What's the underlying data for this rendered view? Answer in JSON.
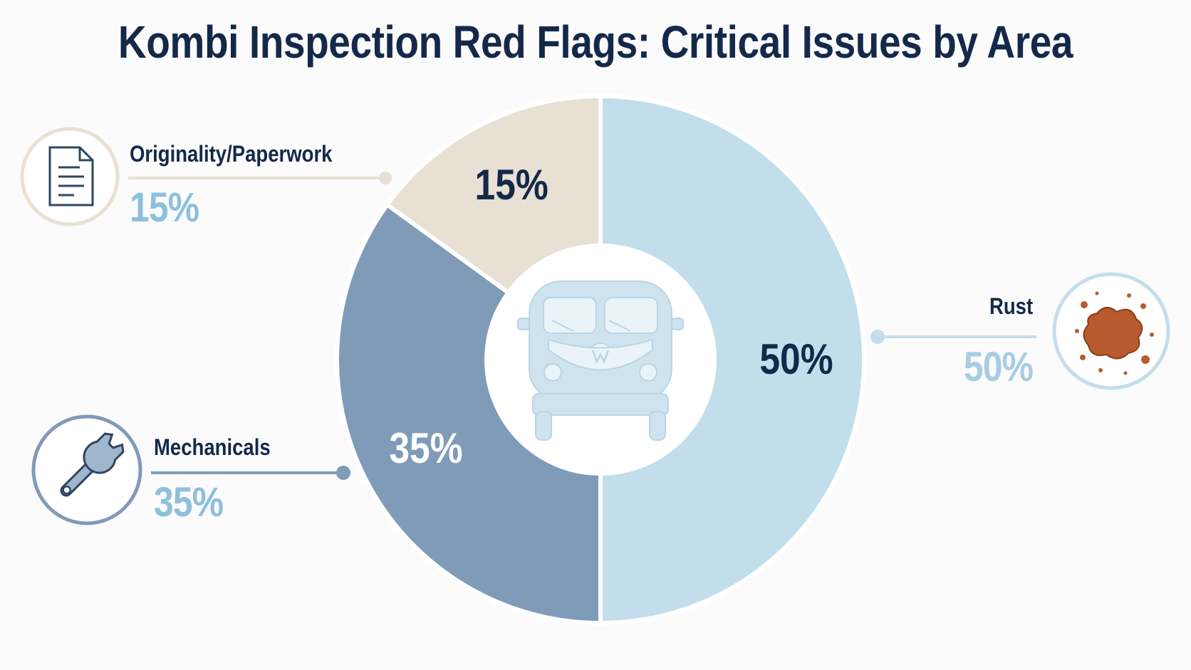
{
  "chart_data": {
    "type": "pie",
    "title": "Kombi Inspection Red Flags: Critical Issues by Area",
    "categories": [
      "Rust",
      "Mechanicals",
      "Originality/Paperwork"
    ],
    "values": [
      50,
      35,
      15
    ],
    "slice_labels": [
      "50%",
      "35%",
      "15%"
    ],
    "donut": true,
    "start_angle": "12 o'clock",
    "direction": "clockwise",
    "legend_placement": "callouts"
  },
  "callouts": [
    {
      "name": "Originality/Paperwork",
      "value": "15%",
      "icon": "document-icon"
    },
    {
      "name": "Mechanicals",
      "value": "35%",
      "icon": "wrench-icon"
    },
    {
      "name": "Rust",
      "value": "50%",
      "icon": "rust-stain-icon"
    }
  ],
  "center_icon": "vw-bus-icon",
  "colors": {
    "title": "#14294a",
    "rust": "#c2deeb",
    "mechanicals": "#7f9bb8",
    "paperwork": "#e8e0d3",
    "value_text": "#8ec0dc",
    "rust_stain": "#b95a2e"
  }
}
